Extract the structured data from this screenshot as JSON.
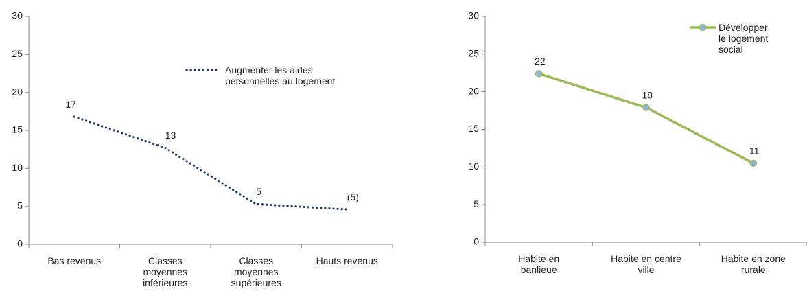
{
  "chart_data": [
    {
      "type": "line",
      "categories": [
        "Bas revenus",
        "Classes moyennes inférieures",
        "Classes moyennes supérieures",
        "Hauts revenus"
      ],
      "series": [
        {
          "name": "Augmenter les aides personnelles au logement",
          "color": "#1f3864",
          "line_style": "dotted",
          "markers": false,
          "values": [
            16.8,
            12.7,
            5.3,
            4.6
          ],
          "value_labels": [
            "17",
            "13",
            "5",
            "(5)"
          ]
        }
      ],
      "ylim": [
        0,
        30
      ],
      "yticks": [
        0,
        5,
        10,
        15,
        20,
        25,
        30
      ],
      "legend": "center right"
    },
    {
      "type": "line",
      "categories": [
        "Habite en banlieue",
        "Habite en centre ville",
        "Habite en zone rurale"
      ],
      "series": [
        {
          "name": "Développer le logement social",
          "color": "#9bbb59",
          "line_style": "solid",
          "markers": true,
          "values": [
            22.4,
            17.9,
            10.5
          ],
          "value_labels": [
            "22",
            "18",
            "11"
          ]
        }
      ],
      "ylim": [
        0,
        30
      ],
      "yticks": [
        0,
        5,
        10,
        15,
        20,
        25,
        30
      ],
      "legend": "upper right"
    }
  ]
}
